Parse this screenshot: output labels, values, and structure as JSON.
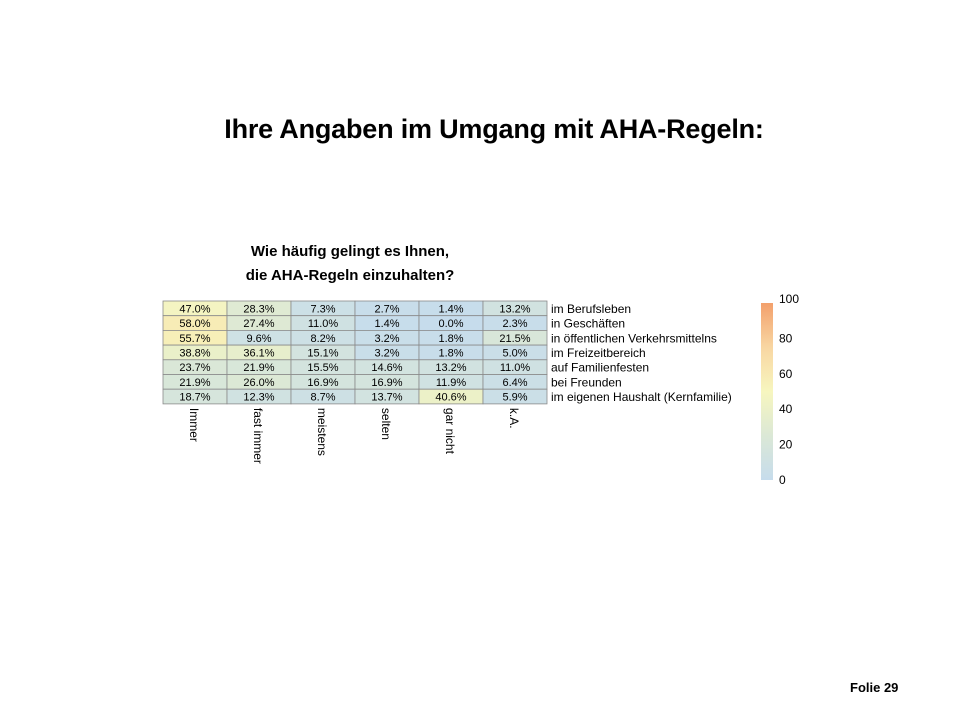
{
  "slide": {
    "title": "Ihre Angaben im Umgang mit AHA-Regeln:",
    "footer": "Folie 29"
  },
  "chart_data": {
    "type": "heatmap",
    "title": "Wie häufig  gelingt  es Ihnen,\ndie AHA-Regeln  einzuhalten?",
    "columns": [
      "Immer",
      "fast immer",
      "meistens",
      "selten",
      "gar nicht",
      "k.A."
    ],
    "rows": [
      "im Berufsleben",
      "in Geschäften",
      "in öffentlichen  Verkehrsmittelns",
      "im Freizeitbereich",
      "auf Familienfesten",
      "bei Freunden",
      "im eigenen Haushalt (Kernfamilie)"
    ],
    "values": [
      [
        47.0,
        28.3,
        7.3,
        2.7,
        1.4,
        13.2
      ],
      [
        58.0,
        27.4,
        11.0,
        1.4,
        0.0,
        2.3
      ],
      [
        55.7,
        9.6,
        8.2,
        3.2,
        1.8,
        21.5
      ],
      [
        38.8,
        36.1,
        15.1,
        3.2,
        1.8,
        5.0
      ],
      [
        23.7,
        21.9,
        15.5,
        14.6,
        13.2,
        11.0
      ],
      [
        21.9,
        26.0,
        16.9,
        16.9,
        11.9,
        6.4
      ],
      [
        18.7,
        12.3,
        8.7,
        13.7,
        40.6,
        5.9
      ]
    ],
    "value_format": "%",
    "color_scale": {
      "min": 0,
      "max": 100,
      "ticks": [
        0,
        20,
        40,
        60,
        80,
        100
      ],
      "stops": [
        "#c6dcec",
        "#dbe8d6",
        "#f7f6bf",
        "#f8d6a2",
        "#f3a06c"
      ]
    }
  }
}
